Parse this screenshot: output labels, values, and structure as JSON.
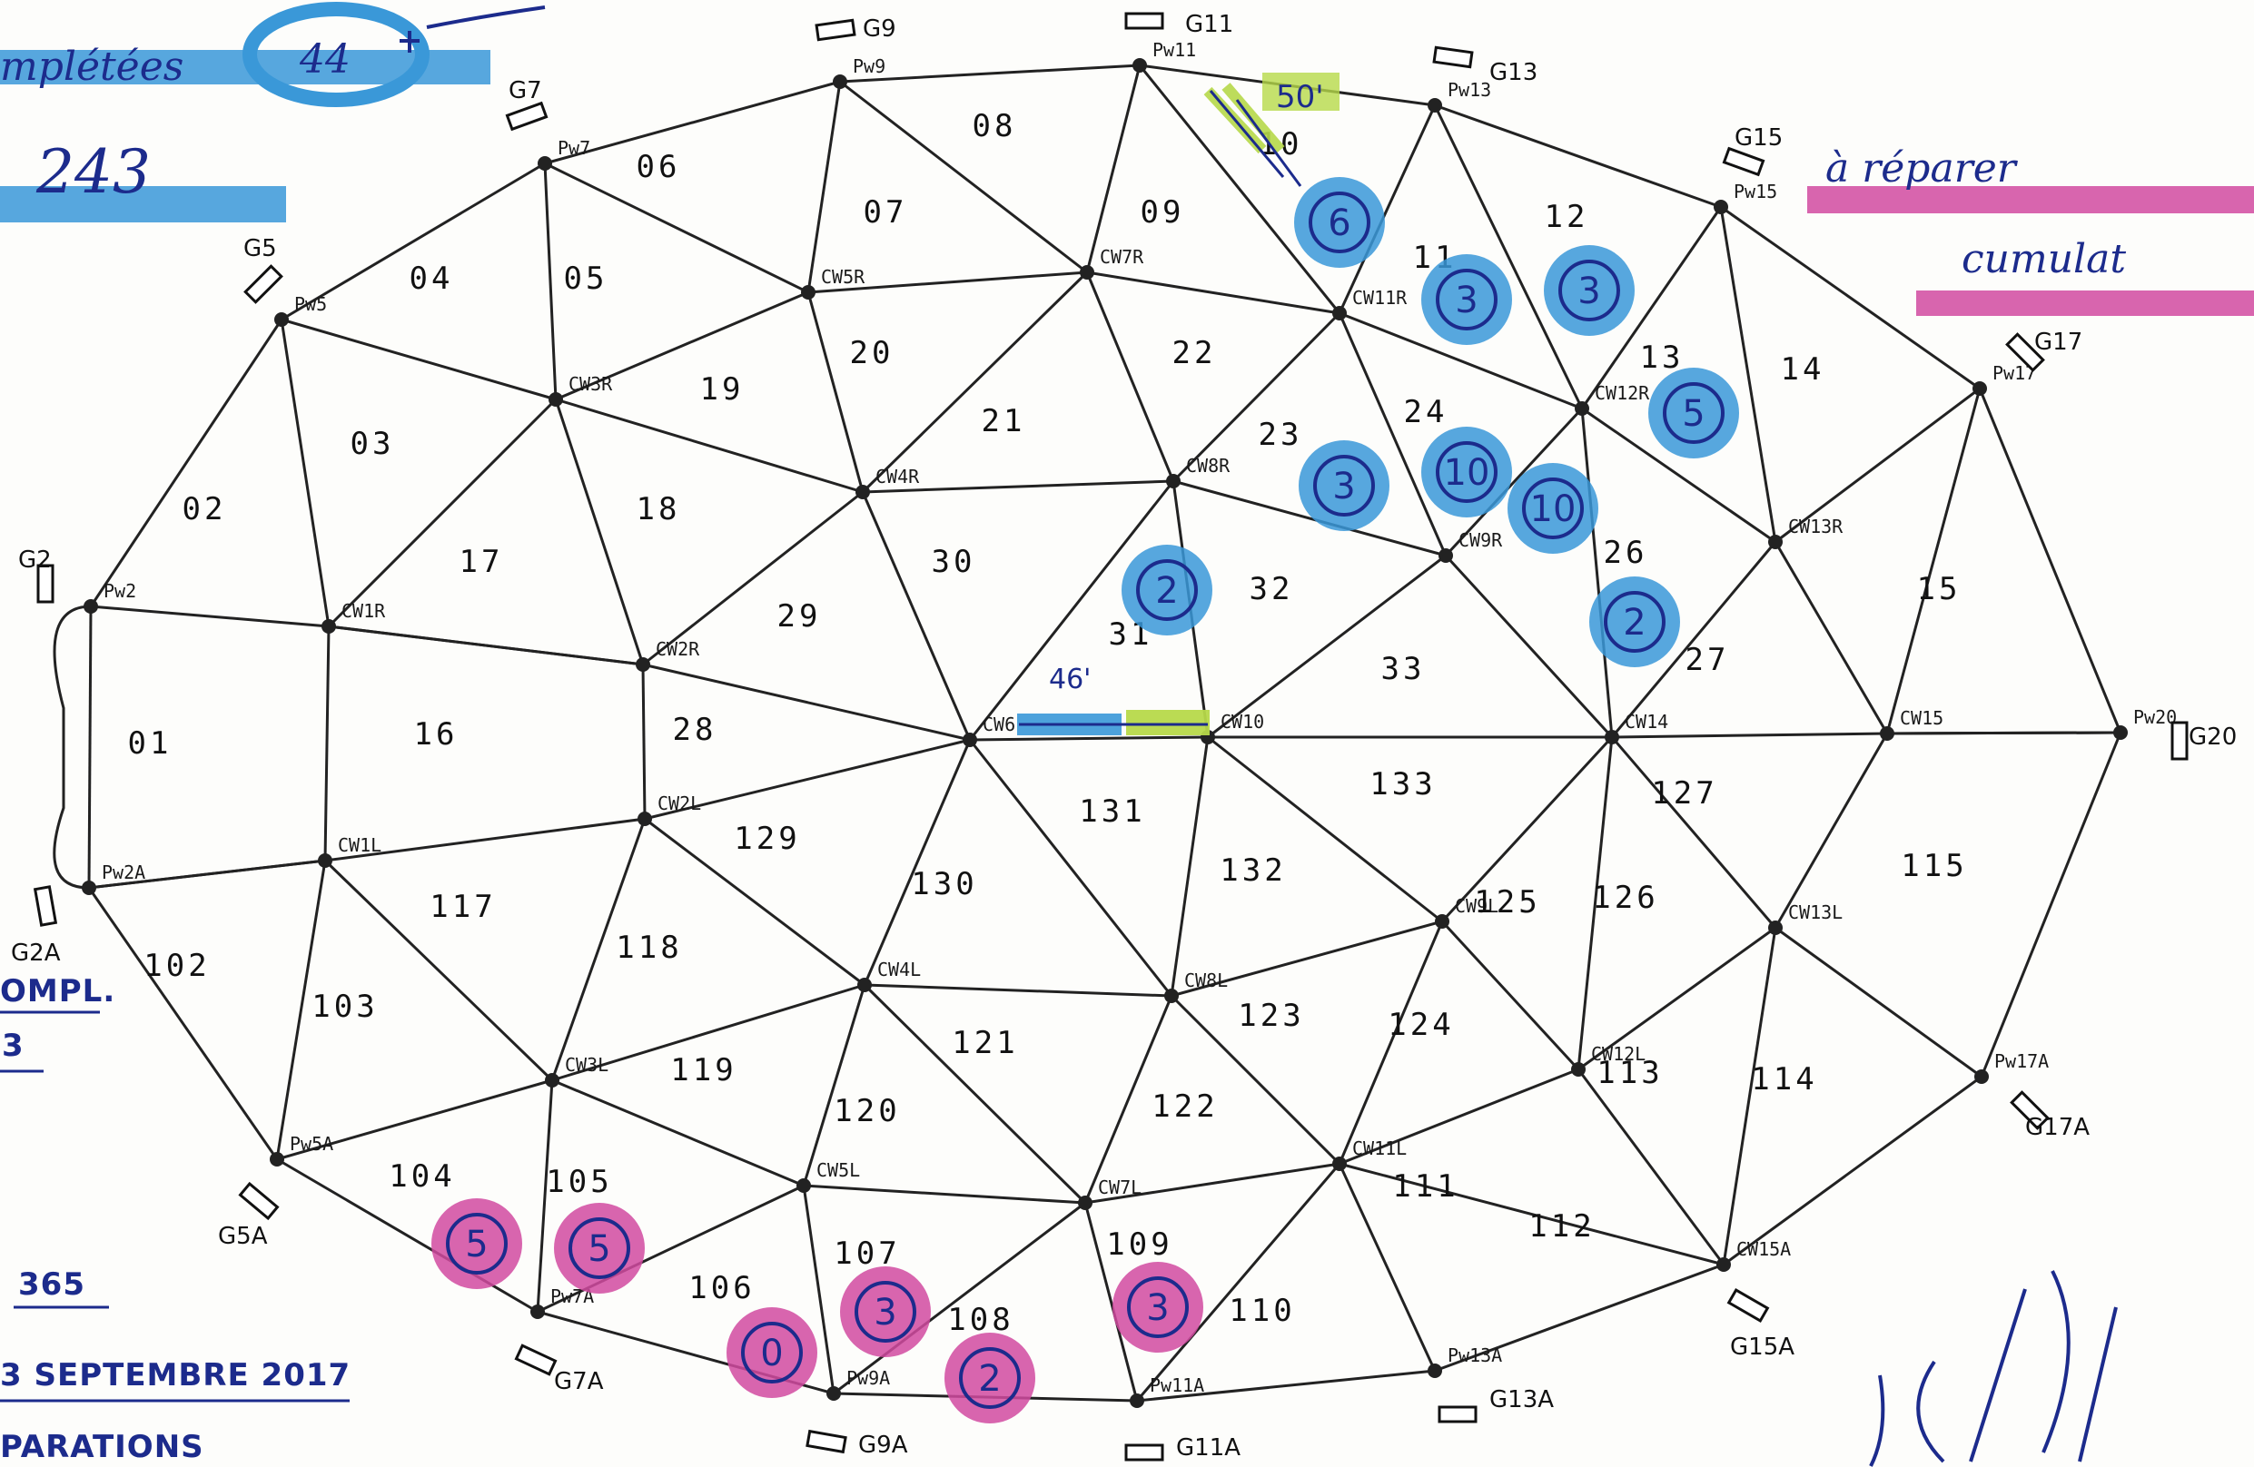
{
  "notes": {
    "completed_word": "mplétées",
    "completed_count": "44",
    "total_count": "243",
    "repair_line1": "à réparer",
    "repair_line2": "cumulat",
    "compl_label": "OMPL.",
    "compl_digit": "3",
    "count_365": "365",
    "date_text": "3 SEPTEMBRE 2017",
    "reparations": "PARATIONS",
    "length_50": "50'",
    "length_46": "46'"
  },
  "gages": [
    "G9",
    "G11",
    "G13",
    "G7",
    "G15",
    "G5",
    "G17",
    "G2",
    "G20",
    "G2A",
    "G17A",
    "G5A",
    "G15A",
    "G7A",
    "G13A",
    "G9A",
    "G11A"
  ],
  "nodes": [
    "Pw9",
    "Pw11",
    "Pw13",
    "Pw7",
    "Pw15",
    "Pw5",
    "CW7R",
    "CW5R",
    "CW11R",
    "Pw17",
    "CW3R",
    "CW12R",
    "CW4R",
    "CW8R",
    "CW13R",
    "Pw2",
    "CW1R",
    "CW9R",
    "CW2R",
    "CW6",
    "CW10",
    "CW14",
    "CW15",
    "Pw20",
    "CW2L",
    "CW1L",
    "Pw2A",
    "CW9L",
    "CW13L",
    "CW4L",
    "CW8L",
    "CW3L",
    "CW12L",
    "Pw17A",
    "Pw5A",
    "CW5L",
    "CW11L",
    "CW7L",
    "CW15A",
    "Pw7A",
    "Pw13A",
    "Pw9A",
    "Pw11A"
  ],
  "triangles": [
    "06",
    "08",
    "07",
    "09",
    "10",
    "04",
    "05",
    "12",
    "11",
    "20",
    "22",
    "19",
    "21",
    "14",
    "03",
    "24",
    "23",
    "02",
    "18",
    "13",
    "17",
    "26",
    "30",
    "29",
    "31",
    "32",
    "33",
    "27",
    "15",
    "01",
    "16",
    "28",
    "131",
    "133",
    "127",
    "129",
    "130",
    "132",
    "126",
    "125",
    "117",
    "115",
    "118",
    "102",
    "121",
    "103",
    "123",
    "124",
    "119",
    "113",
    "114",
    "120",
    "122",
    "111",
    "112",
    "104",
    "105",
    "107",
    "109",
    "106",
    "110",
    "108"
  ],
  "repair_marks": {
    "blue": [
      "6",
      "3",
      "3",
      "5",
      "3",
      "10",
      "10",
      "2",
      "2"
    ],
    "pink": [
      "5",
      "5",
      "0",
      "3",
      "2",
      "3"
    ]
  },
  "colors": {
    "ink": "#1c2b8c",
    "blue_highlight": "#3a98d8",
    "pink_highlight": "#d14aa0",
    "yellow_highlight": "#b7d94a"
  }
}
